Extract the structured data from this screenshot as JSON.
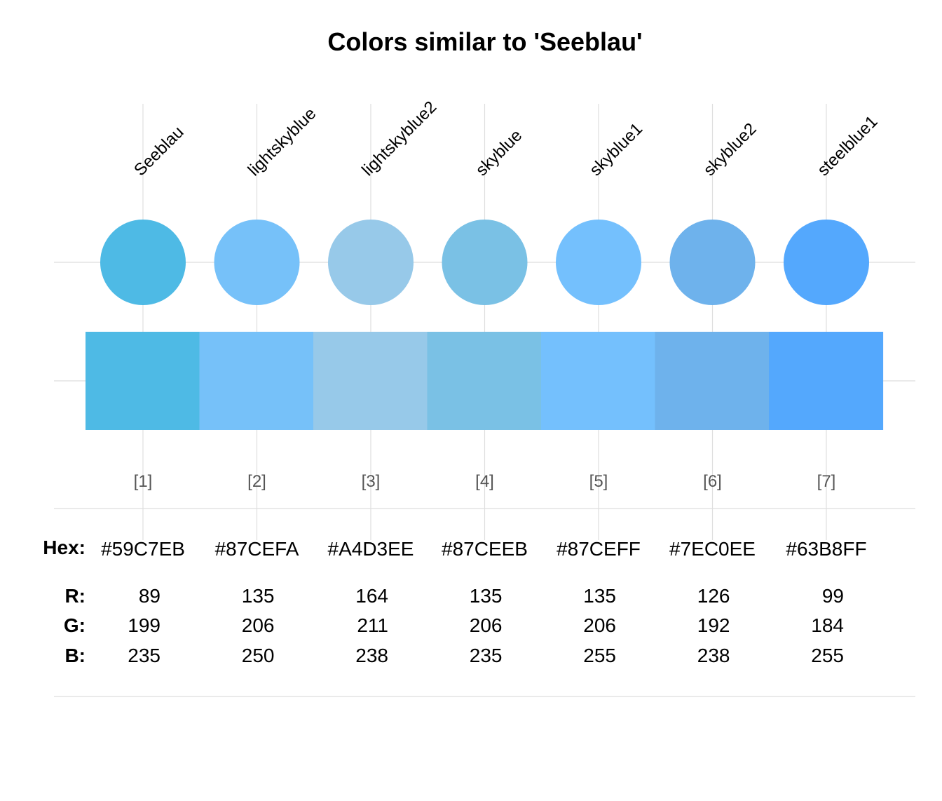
{
  "chart_data": {
    "type": "table",
    "title": "Colors similar to 'Seeblau'",
    "grid": true,
    "colors": [
      {
        "index": "[1]",
        "name": "Seeblau",
        "hex": "#59C7EB",
        "r": 89,
        "g": 199,
        "b": 235,
        "swatch": "#4EBAE5"
      },
      {
        "index": "[2]",
        "name": "lightskyblue",
        "hex": "#87CEFA",
        "r": 135,
        "g": 206,
        "b": 250,
        "swatch": "#76C1F9"
      },
      {
        "index": "[3]",
        "name": "lightskyblue2",
        "hex": "#A4D3EE",
        "r": 164,
        "g": 211,
        "b": 238,
        "swatch": "#97C9E9"
      },
      {
        "index": "[4]",
        "name": "skyblue",
        "hex": "#87CEEB",
        "r": 135,
        "g": 206,
        "b": 235,
        "swatch": "#7AC1E5"
      },
      {
        "index": "[5]",
        "name": "skyblue1",
        "hex": "#87CEFF",
        "r": 135,
        "g": 206,
        "b": 255,
        "swatch": "#74C0FD"
      },
      {
        "index": "[6]",
        "name": "skyblue2",
        "hex": "#7EC0EE",
        "r": 126,
        "g": 192,
        "b": 238,
        "swatch": "#6EB2EC"
      },
      {
        "index": "[7]",
        "name": "steelblue1",
        "hex": "#63B8FF",
        "r": 99,
        "g": 184,
        "b": 255,
        "swatch": "#54A8FD"
      }
    ],
    "row_labels": {
      "hex": "Hex:",
      "r": "R:",
      "g": "G:",
      "b": "B:"
    }
  }
}
